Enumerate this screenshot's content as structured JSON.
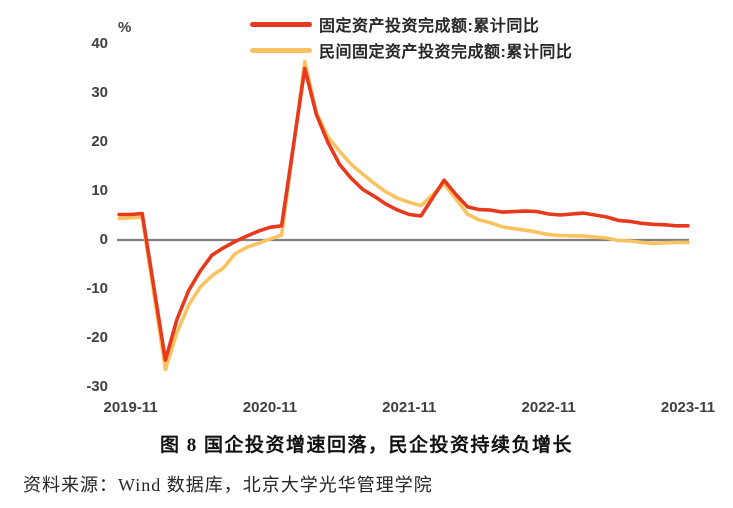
{
  "legend": {
    "series": [
      {
        "label": "固定资产投资完成额:累计同比",
        "color": "#e7391d"
      },
      {
        "label": "民间固定资产投资完成额:累计同比",
        "color": "#fac362"
      }
    ]
  },
  "axis": {
    "unit_label": "%",
    "y_ticks": [
      40,
      30,
      20,
      10,
      0,
      -10,
      -20,
      -30
    ],
    "x_ticks": [
      "2019-11",
      "2020-11",
      "2021-11",
      "2022-11",
      "2023-11"
    ],
    "zero_line_color": "#7f7f7f"
  },
  "caption": "图 8 国企投资增速回落，民企投资持续负增长",
  "source": "资料来源：Wind 数据库，北京大学光华管理学院",
  "chart_data": {
    "type": "line",
    "title": "图 8 国企投资增速回落，民企投资持续负增长",
    "ylabel": "%",
    "ylim": [
      -30,
      40
    ],
    "grid": false,
    "zero_line": true,
    "legend_position": "top",
    "x_tick_labels": [
      "2019-11",
      "2020-11",
      "2021-11",
      "2022-11",
      "2023-11"
    ],
    "x": [
      "2019-10",
      "2019-11",
      "2019-12",
      "2020-02",
      "2020-03",
      "2020-04",
      "2020-05",
      "2020-06",
      "2020-07",
      "2020-08",
      "2020-09",
      "2020-10",
      "2020-11",
      "2020-12",
      "2021-02",
      "2021-03",
      "2021-04",
      "2021-05",
      "2021-06",
      "2021-07",
      "2021-08",
      "2021-09",
      "2021-10",
      "2021-11",
      "2021-12",
      "2022-02",
      "2022-03",
      "2022-04",
      "2022-05",
      "2022-06",
      "2022-07",
      "2022-08",
      "2022-09",
      "2022-10",
      "2022-11",
      "2022-12",
      "2023-02",
      "2023-03",
      "2023-04",
      "2023-05",
      "2023-06",
      "2023-07",
      "2023-08",
      "2023-09",
      "2023-10",
      "2023-11"
    ],
    "series": [
      {
        "name": "固定资产投资完成额:累计同比",
        "color": "#e7391d",
        "values": [
          5.2,
          5.2,
          5.4,
          -24.5,
          -16.1,
          -10.3,
          -6.3,
          -3.1,
          -1.6,
          -0.3,
          0.8,
          1.8,
          2.6,
          2.9,
          35.0,
          25.6,
          19.9,
          15.4,
          12.6,
          10.3,
          8.9,
          7.3,
          6.1,
          5.2,
          4.9,
          12.2,
          9.3,
          6.8,
          6.2,
          6.1,
          5.7,
          5.8,
          5.9,
          5.8,
          5.3,
          5.1,
          5.5,
          5.1,
          4.7,
          4.0,
          3.8,
          3.4,
          3.2,
          3.1,
          2.9,
          2.9
        ]
      },
      {
        "name": "民间固定资产投资完成额:累计同比",
        "color": "#fac362",
        "values": [
          4.4,
          4.5,
          4.7,
          -26.4,
          -18.8,
          -13.3,
          -9.6,
          -7.3,
          -5.7,
          -2.8,
          -1.5,
          -0.7,
          0.2,
          1.0,
          36.4,
          26.0,
          21.0,
          18.1,
          15.4,
          13.4,
          11.5,
          9.8,
          8.5,
          7.7,
          7.0,
          11.4,
          8.4,
          5.3,
          4.1,
          3.5,
          2.7,
          2.3,
          2.0,
          1.6,
          1.1,
          0.9,
          0.8,
          0.6,
          0.4,
          -0.1,
          -0.2,
          -0.5,
          -0.7,
          -0.6,
          -0.5,
          -0.5
        ]
      }
    ]
  }
}
